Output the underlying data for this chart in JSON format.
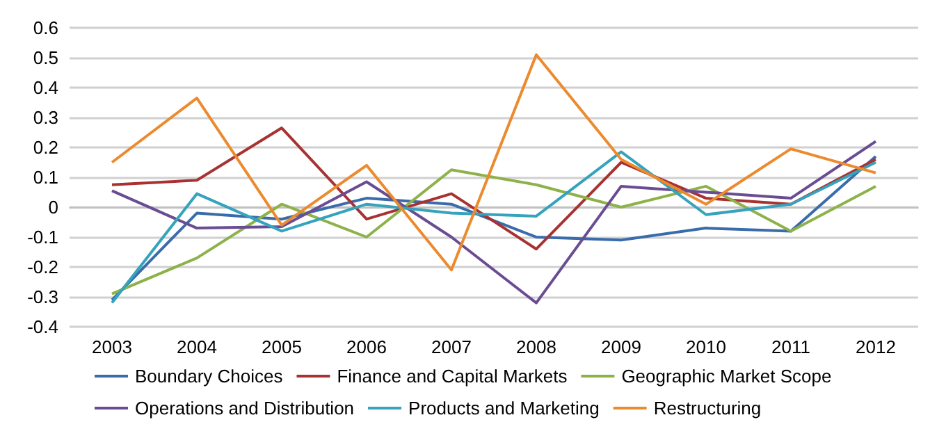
{
  "chart_data": {
    "type": "line",
    "categories": [
      "2003",
      "2004",
      "2005",
      "2006",
      "2007",
      "2008",
      "2009",
      "2010",
      "2011",
      "2012"
    ],
    "series": [
      {
        "name": "Boundary Choices",
        "color": "#3a6bab",
        "values": [
          -0.31,
          -0.02,
          -0.04,
          0.03,
          0.01,
          -0.1,
          -0.11,
          -0.07,
          -0.08,
          0.17
        ]
      },
      {
        "name": "Finance and Capital Markets",
        "color": "#a83232",
        "values": [
          0.075,
          0.09,
          0.265,
          -0.04,
          0.045,
          -0.14,
          0.15,
          0.03,
          0.01,
          0.16
        ]
      },
      {
        "name": "Geographic Market Scope",
        "color": "#8db24a",
        "values": [
          -0.29,
          -0.17,
          0.01,
          -0.1,
          0.125,
          0.075,
          0.0,
          0.07,
          -0.08,
          0.07
        ]
      },
      {
        "name": "Operations and Distribution",
        "color": "#6a4c93",
        "values": [
          0.055,
          -0.07,
          -0.065,
          0.085,
          -0.1,
          -0.32,
          0.07,
          0.05,
          0.03,
          0.22
        ]
      },
      {
        "name": "Products and Marketing",
        "color": "#35a3bd",
        "values": [
          -0.32,
          0.045,
          -0.08,
          0.01,
          -0.02,
          -0.03,
          0.185,
          -0.025,
          0.01,
          0.15
        ]
      },
      {
        "name": "Restructuring",
        "color": "#ec8a2e",
        "values": [
          0.15,
          0.365,
          -0.06,
          0.14,
          -0.21,
          0.51,
          0.16,
          0.01,
          0.195,
          0.115
        ]
      }
    ],
    "ylim": [
      -0.4,
      0.6
    ],
    "yticks": [
      -0.4,
      -0.3,
      -0.2,
      -0.1,
      0,
      0.1,
      0.2,
      0.3,
      0.4,
      0.5,
      0.6
    ],
    "grid": "y",
    "legend": "bottom",
    "marker": "none",
    "line_style": "solid"
  }
}
